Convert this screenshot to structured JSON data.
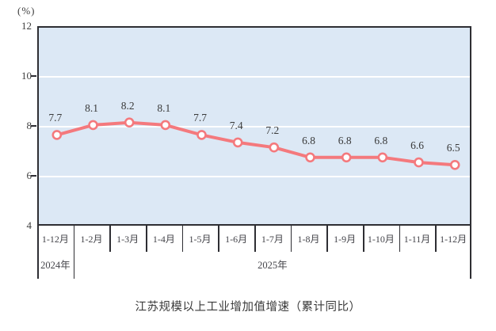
{
  "chart_data": {
    "type": "line",
    "title": "江苏规模以上工业增加值增速（累计同比）",
    "unit_label": "(%)",
    "categories": [
      "1-12月",
      "1-2月",
      "1-3月",
      "1-4月",
      "1-5月",
      "1-6月",
      "1-7月",
      "1-8月",
      "1-9月",
      "1-10月",
      "1-11月",
      "1-12月"
    ],
    "values": [
      7.7,
      8.1,
      8.2,
      8.1,
      7.7,
      7.4,
      7.2,
      6.8,
      6.8,
      6.8,
      6.6,
      6.5
    ],
    "year_groups": [
      {
        "label": "2024年",
        "span": 1
      },
      {
        "label": "2025年",
        "span": 11
      }
    ],
    "ylabel": "",
    "xlabel": "",
    "ylim": [
      4,
      12
    ],
    "yticks": [
      12,
      10,
      8,
      6,
      4
    ],
    "gridline_values": [
      10,
      8,
      6
    ],
    "grid": "horizontal",
    "legend_position": "none",
    "colors": {
      "line": "#F4797D",
      "marker_fill": "#FEFEFE",
      "plot_bg": "#DCE8F5",
      "grid": "#FFFFFF",
      "axis": "#2E2E33",
      "text": "#3A3A3A"
    }
  }
}
